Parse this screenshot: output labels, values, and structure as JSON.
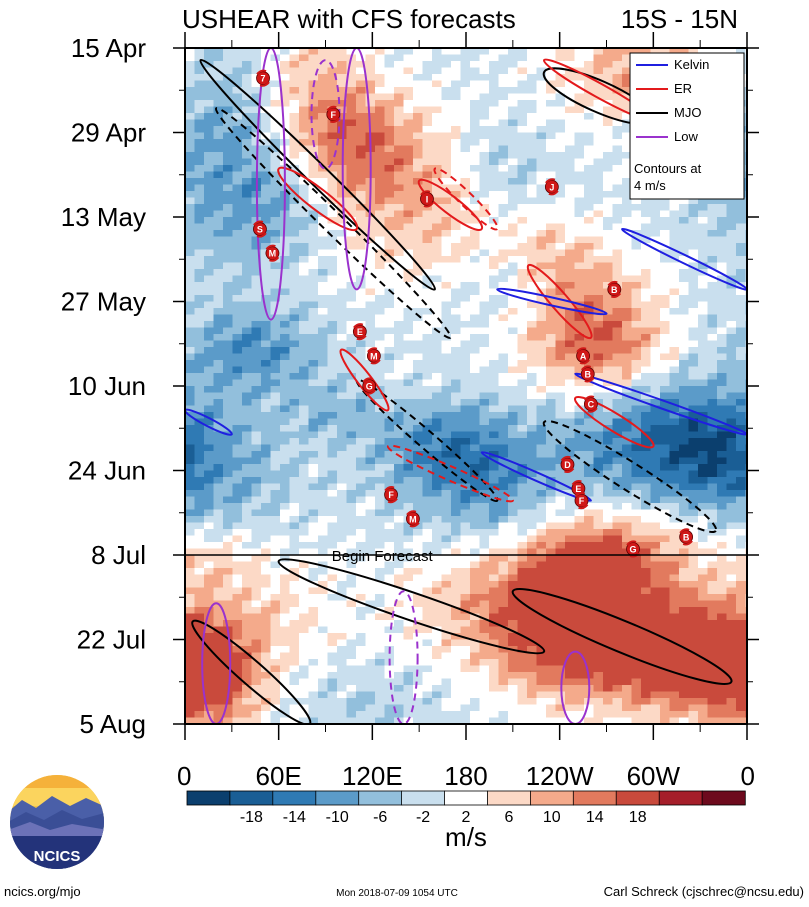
{
  "chart_data": {
    "type": "heatmap",
    "title_left": "USHEAR with CFS forecasts",
    "title_right": "15S - 15N",
    "y_axis": {
      "kind": "time",
      "ticks": [
        "15 Apr",
        "29 Apr",
        "13 May",
        "27 May",
        "10 Jun",
        "24 Jun",
        "8 Jul",
        "22 Jul",
        "5 Aug"
      ],
      "range": [
        "2018-04-15",
        "2018-08-05"
      ],
      "inverted": true
    },
    "x_axis": {
      "kind": "longitude",
      "ticks": [
        "0",
        "60E",
        "120E",
        "180",
        "120W",
        "60W",
        "0"
      ],
      "range_deg_east": [
        0,
        360
      ]
    },
    "forecast_line": {
      "date": "2018-07-08",
      "label": "Begin Forecast"
    },
    "colorbar": {
      "ticks": [
        "-18",
        "-14",
        "-10",
        "-6",
        "-2",
        "2",
        "6",
        "10",
        "14",
        "18"
      ],
      "colors": [
        "#0b3f6e",
        "#1a5e95",
        "#2f7ab4",
        "#5b9bc9",
        "#92bfdc",
        "#c9dfee",
        "#ffffff",
        "#fcd9c6",
        "#f4aa8b",
        "#e27a5e",
        "#c94a3c",
        "#a51e2a",
        "#6d0a1d"
      ],
      "units": "m/s"
    },
    "legend": {
      "placement": "top-right",
      "items": [
        {
          "name": "Kelvin",
          "color": "#1f1fe0"
        },
        {
          "name": "ER",
          "color": "#e31a1c"
        },
        {
          "name": "MJO",
          "color": "#000000"
        },
        {
          "name": "Low",
          "color": "#9a32cd"
        }
      ],
      "note_line1": "Contours at",
      "note_line2": "4 m/s"
    },
    "tc_markers": [
      {
        "label": "7",
        "date": "2018-04-20",
        "lon": 50
      },
      {
        "label": "F",
        "date": "2018-04-26",
        "lon": 95
      },
      {
        "label": "I",
        "date": "2018-05-10",
        "lon": 155
      },
      {
        "label": "S",
        "date": "2018-05-15",
        "lon": 48
      },
      {
        "label": "M",
        "date": "2018-05-19",
        "lon": 56
      },
      {
        "label": "J",
        "date": "2018-05-08",
        "lon": 235
      },
      {
        "label": "B",
        "date": "2018-05-25",
        "lon": 275
      },
      {
        "label": "E",
        "date": "2018-06-01",
        "lon": 112
      },
      {
        "label": "M",
        "date": "2018-06-05",
        "lon": 121
      },
      {
        "label": "G",
        "date": "2018-06-10",
        "lon": 118
      },
      {
        "label": "A",
        "date": "2018-06-05",
        "lon": 255
      },
      {
        "label": "B",
        "date": "2018-06-08",
        "lon": 258
      },
      {
        "label": "C",
        "date": "2018-06-13",
        "lon": 260
      },
      {
        "label": "D",
        "date": "2018-06-23",
        "lon": 245
      },
      {
        "label": "E",
        "date": "2018-06-27",
        "lon": 252
      },
      {
        "label": "F",
        "date": "2018-06-29",
        "lon": 254
      },
      {
        "label": "F",
        "date": "2018-06-28",
        "lon": 132
      },
      {
        "label": "M",
        "date": "2018-07-02",
        "lon": 146
      },
      {
        "label": "G",
        "date": "2018-07-07",
        "lon": 287
      },
      {
        "label": "B",
        "date": "2018-07-05",
        "lon": 321
      }
    ]
  },
  "branding": {
    "logo_text": "NCICS",
    "site": "ncics.org/mjo",
    "timestamp": "Mon 2018-07-09 1054 UTC",
    "author": "Carl Schreck (cjschrec@ncsu.edu)"
  }
}
